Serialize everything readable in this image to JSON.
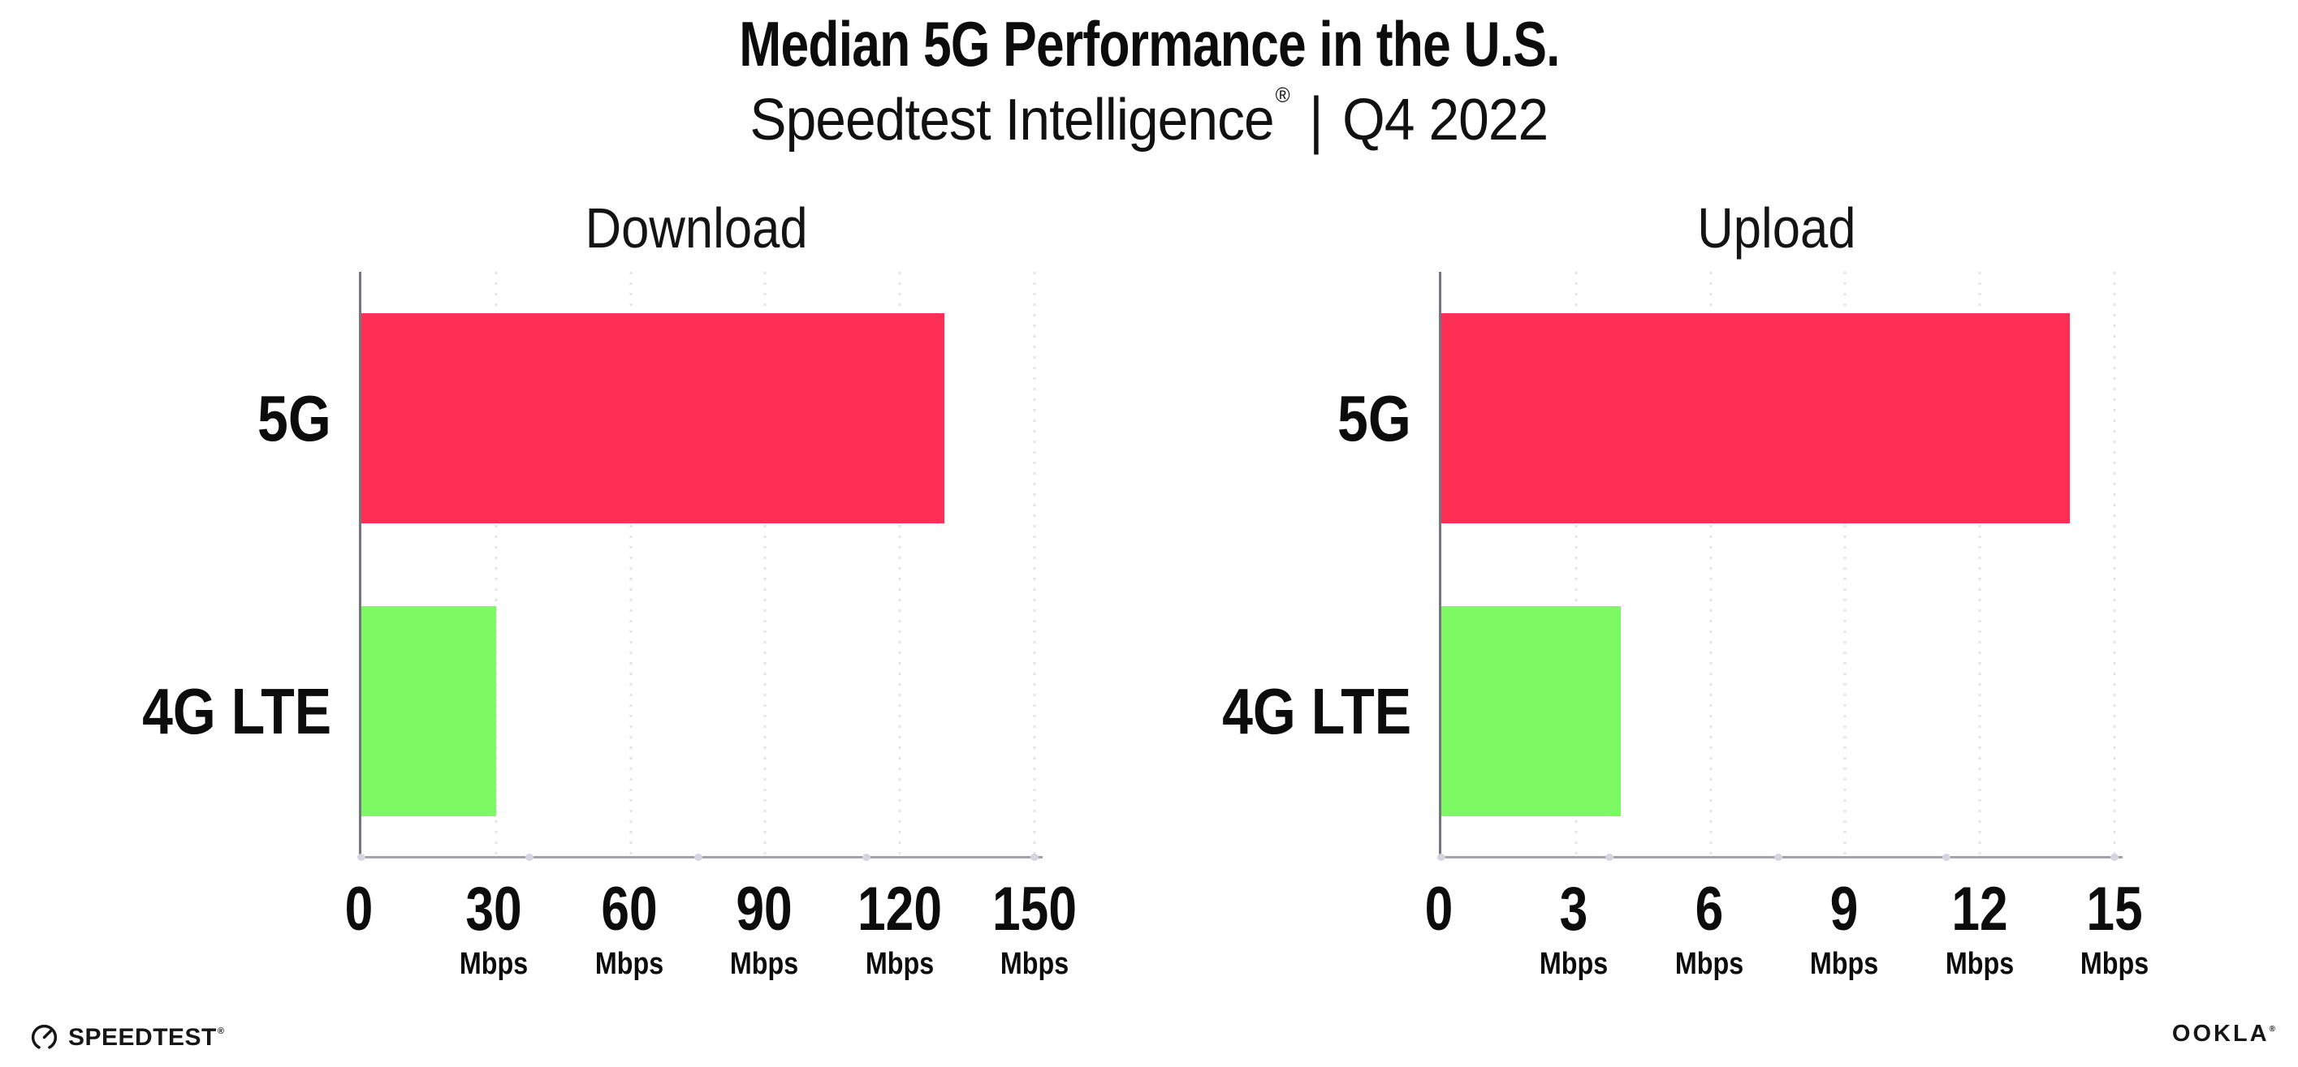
{
  "header": {
    "title": "Median 5G Performance in the U.S.",
    "subtitle_brand": "Speedtest Intelligence",
    "subtitle_reg": "®",
    "subtitle_separator": "|",
    "subtitle_period": "Q4 2022"
  },
  "chart_data": [
    {
      "type": "bar",
      "orientation": "horizontal",
      "title": "Download",
      "categories": [
        "5G",
        "4G LTE"
      ],
      "values": [
        130,
        30
      ],
      "unit": "Mbps",
      "xlim": [
        0,
        150
      ],
      "xticks": [
        0,
        30,
        60,
        90,
        120,
        150
      ],
      "bar_colors": [
        "#FF2E55",
        "#7DF963"
      ],
      "grid": "dotted-vertical",
      "legend": "none"
    },
    {
      "type": "bar",
      "orientation": "horizontal",
      "title": "Upload",
      "categories": [
        "5G",
        "4G LTE"
      ],
      "values": [
        14,
        4
      ],
      "unit": "Mbps",
      "xlim": [
        0,
        15
      ],
      "xticks": [
        0,
        3,
        6,
        9,
        12,
        15
      ],
      "bar_colors": [
        "#FF2E55",
        "#7DF963"
      ],
      "grid": "dotted-vertical",
      "legend": "none"
    }
  ],
  "footer": {
    "speedtest_label": "SPEEDTEST",
    "speedtest_mark": "®",
    "ookla_label": "OOKLA",
    "ookla_mark": "®"
  },
  "colors": {
    "bar_5g": "#FF2E55",
    "bar_4g_lte": "#7DF963",
    "x_axis_line": "#a2a2aa",
    "y_axis_line": "#75757d",
    "gridline": "#e3e3ee",
    "axis_dot": "#d5d5df",
    "text": "#0c0c0c",
    "background": "#ffffff"
  }
}
